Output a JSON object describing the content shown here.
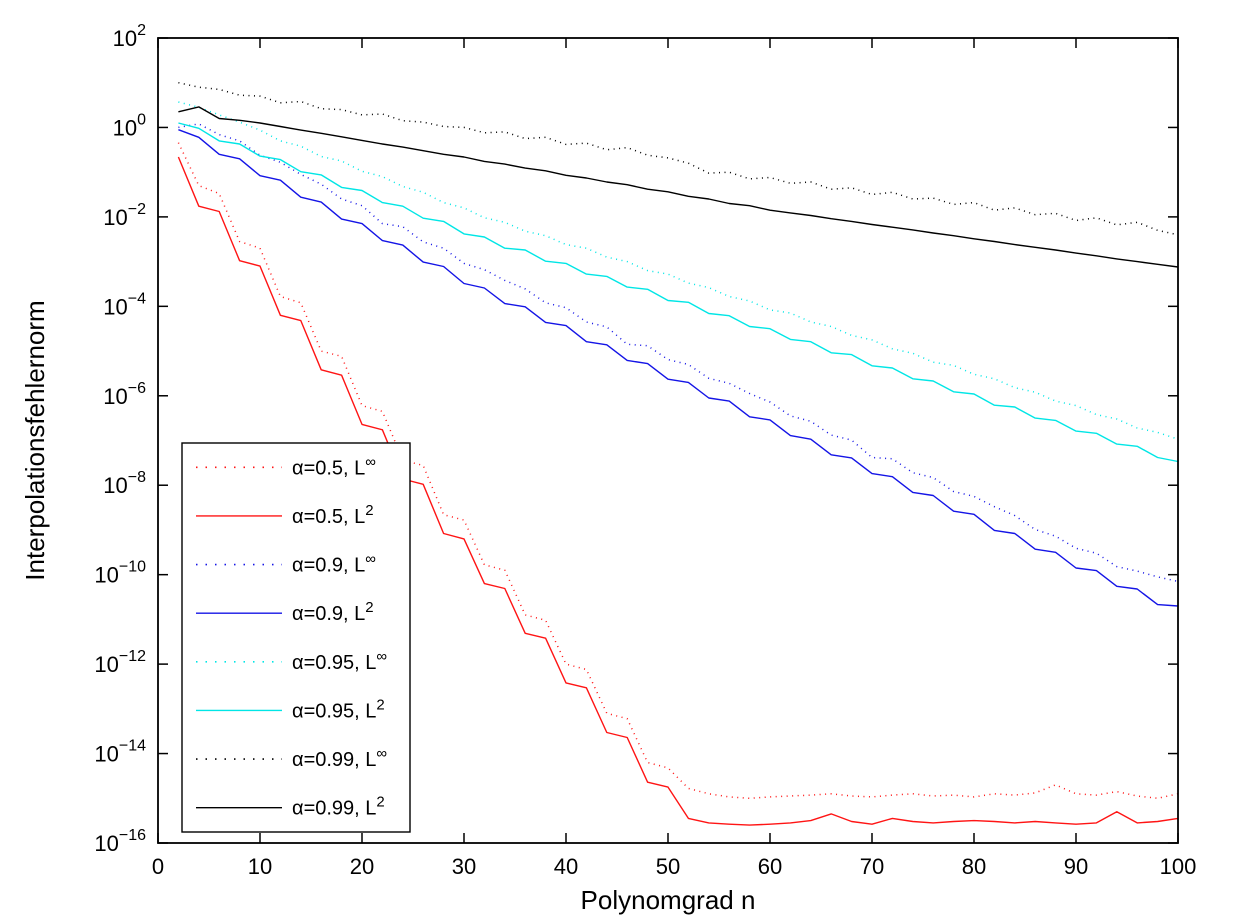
{
  "chart_data": {
    "type": "line",
    "title": "",
    "xlabel": "Polynomgrad n",
    "ylabel": "Interpolationsfehlernorm",
    "x_scale": "linear",
    "y_scale": "log10",
    "xlim": [
      0,
      100
    ],
    "ylim_exponents": [
      -16,
      2
    ],
    "x_ticks": [
      0,
      10,
      20,
      30,
      40,
      50,
      60,
      70,
      80,
      90,
      100
    ],
    "y_tick_exponents": [
      2,
      0,
      -2,
      -4,
      -6,
      -8,
      -10,
      -12,
      -14,
      -16
    ],
    "y_tick_mantissa": "10",
    "grid": false,
    "background_color": "#ffffff",
    "axis_color": "#000000",
    "legend_position": "lower-left-inside",
    "y_value_format": "log10y arrays hold log10 of the plotted error norm",
    "x": [
      2,
      4,
      6,
      8,
      10,
      12,
      14,
      16,
      18,
      20,
      22,
      24,
      26,
      28,
      30,
      32,
      34,
      36,
      38,
      40,
      42,
      44,
      46,
      48,
      50,
      52,
      54,
      56,
      58,
      60,
      62,
      64,
      66,
      68,
      70,
      72,
      74,
      76,
      78,
      80,
      82,
      84,
      86,
      88,
      90,
      92,
      94,
      96,
      98,
      100
    ],
    "series": [
      {
        "id": "a05-linf",
        "label": "α=0.5, L∞",
        "label_base": "α=0.5, L",
        "label_sup": "∞",
        "color": "#ff1414",
        "line_style": "dotted",
        "log10y": [
          -0.34,
          -1.3,
          -1.48,
          -2.55,
          -2.7,
          -3.78,
          -3.92,
          -5.0,
          -5.12,
          -6.22,
          -6.35,
          -7.44,
          -7.56,
          -8.66,
          -8.78,
          -9.78,
          -9.9,
          -10.9,
          -11.02,
          -12.0,
          -12.12,
          -13.1,
          -13.22,
          -14.2,
          -14.32,
          -14.78,
          -14.9,
          -14.97,
          -15.0,
          -14.97,
          -14.95,
          -14.93,
          -14.9,
          -14.95,
          -14.97,
          -14.93,
          -14.9,
          -14.95,
          -14.93,
          -14.97,
          -14.9,
          -14.93,
          -14.88,
          -14.7,
          -14.9,
          -14.93,
          -14.85,
          -14.95,
          -15.0,
          -14.9
        ]
      },
      {
        "id": "a05-l2",
        "label": "α=0.5, L2",
        "label_base": "α=0.5, L",
        "label_sup": "2",
        "color": "#ff1414",
        "line_style": "solid",
        "log10y": [
          -0.66,
          -1.76,
          -1.88,
          -2.98,
          -3.1,
          -4.2,
          -4.32,
          -5.42,
          -5.54,
          -6.64,
          -6.76,
          -7.86,
          -7.98,
          -9.08,
          -9.2,
          -10.2,
          -10.31,
          -11.31,
          -11.42,
          -12.42,
          -12.53,
          -13.53,
          -13.64,
          -14.64,
          -14.75,
          -15.45,
          -15.55,
          -15.58,
          -15.6,
          -15.58,
          -15.55,
          -15.5,
          -15.35,
          -15.52,
          -15.58,
          -15.45,
          -15.52,
          -15.55,
          -15.52,
          -15.5,
          -15.52,
          -15.55,
          -15.52,
          -15.55,
          -15.58,
          -15.55,
          -15.3,
          -15.55,
          -15.52,
          -15.45
        ]
      },
      {
        "id": "a09-linf",
        "label": "α=0.9, L∞",
        "label_base": "α=0.9, L",
        "label_sup": "∞",
        "color": "#1414e6",
        "line_style": "dotted",
        "log10y": [
          0.0,
          0.08,
          -0.16,
          -0.3,
          -0.62,
          -0.78,
          -1.05,
          -1.27,
          -1.6,
          -1.75,
          -2.15,
          -2.22,
          -2.56,
          -2.7,
          -3.04,
          -3.18,
          -3.42,
          -3.61,
          -3.92,
          -4.03,
          -4.35,
          -4.46,
          -4.85,
          -4.88,
          -5.19,
          -5.3,
          -5.61,
          -5.72,
          -5.95,
          -6.14,
          -6.45,
          -6.57,
          -6.88,
          -6.99,
          -7.38,
          -7.41,
          -7.72,
          -7.83,
          -8.14,
          -8.25,
          -8.48,
          -8.68,
          -8.99,
          -9.14,
          -9.41,
          -9.52,
          -9.82,
          -9.92,
          -10.05,
          -10.15
        ]
      },
      {
        "id": "a09-l2",
        "label": "α=0.9, L2",
        "label_base": "α=0.9, L",
        "label_sup": "2",
        "color": "#1414e6",
        "line_style": "solid",
        "log10y": [
          -0.05,
          -0.22,
          -0.6,
          -0.7,
          -1.08,
          -1.18,
          -1.56,
          -1.67,
          -2.05,
          -2.15,
          -2.53,
          -2.63,
          -3.01,
          -3.11,
          -3.49,
          -3.59,
          -3.94,
          -4.01,
          -4.36,
          -4.43,
          -4.79,
          -4.86,
          -5.21,
          -5.28,
          -5.63,
          -5.7,
          -6.05,
          -6.12,
          -6.47,
          -6.54,
          -6.89,
          -6.97,
          -7.32,
          -7.39,
          -7.74,
          -7.81,
          -8.16,
          -8.23,
          -8.58,
          -8.65,
          -9.01,
          -9.08,
          -9.43,
          -9.5,
          -9.85,
          -9.91,
          -10.26,
          -10.32,
          -10.67,
          -10.7
        ]
      },
      {
        "id": "a095-linf",
        "label": "α=0.95, L∞",
        "label_base": "α=0.95, L",
        "label_sup": "∞",
        "color": "#00e6e6",
        "line_style": "dotted",
        "log10y": [
          0.57,
          0.45,
          0.28,
          0.12,
          -0.06,
          -0.3,
          -0.42,
          -0.65,
          -0.75,
          -0.98,
          -1.1,
          -1.32,
          -1.45,
          -1.68,
          -1.8,
          -2.02,
          -2.12,
          -2.32,
          -2.42,
          -2.62,
          -2.7,
          -2.9,
          -3.0,
          -3.2,
          -3.28,
          -3.48,
          -3.58,
          -3.78,
          -3.88,
          -4.08,
          -4.15,
          -4.35,
          -4.45,
          -4.65,
          -4.75,
          -4.95,
          -5.05,
          -5.25,
          -5.32,
          -5.52,
          -5.62,
          -5.82,
          -5.92,
          -6.12,
          -6.22,
          -6.42,
          -6.52,
          -6.72,
          -6.82,
          -6.97
        ]
      },
      {
        "id": "a095-l2",
        "label": "α=0.95, L2",
        "label_base": "α=0.95, L",
        "label_sup": "2",
        "color": "#00e6e6",
        "line_style": "solid",
        "log10y": [
          0.1,
          -0.02,
          -0.3,
          -0.37,
          -0.64,
          -0.72,
          -0.99,
          -1.06,
          -1.34,
          -1.41,
          -1.68,
          -1.76,
          -2.03,
          -2.1,
          -2.38,
          -2.45,
          -2.7,
          -2.74,
          -2.99,
          -3.04,
          -3.28,
          -3.33,
          -3.57,
          -3.62,
          -3.87,
          -3.91,
          -4.16,
          -4.21,
          -4.45,
          -4.5,
          -4.74,
          -4.79,
          -5.04,
          -5.08,
          -5.33,
          -5.38,
          -5.62,
          -5.67,
          -5.91,
          -5.96,
          -6.21,
          -6.25,
          -6.5,
          -6.55,
          -6.79,
          -6.84,
          -7.08,
          -7.13,
          -7.38,
          -7.47
        ]
      },
      {
        "id": "a099-linf",
        "label": "α=0.99, L∞",
        "label_base": "α=0.99, L",
        "label_sup": "∞",
        "color": "#000000",
        "line_style": "dotted",
        "log10y": [
          1.0,
          0.9,
          0.85,
          0.72,
          0.7,
          0.55,
          0.58,
          0.42,
          0.4,
          0.28,
          0.3,
          0.15,
          0.12,
          0.02,
          0.0,
          -0.12,
          -0.1,
          -0.25,
          -0.22,
          -0.38,
          -0.35,
          -0.5,
          -0.45,
          -0.62,
          -0.68,
          -0.8,
          -1.02,
          -1.0,
          -1.15,
          -1.12,
          -1.25,
          -1.22,
          -1.38,
          -1.35,
          -1.5,
          -1.45,
          -1.6,
          -1.58,
          -1.72,
          -1.68,
          -1.85,
          -1.8,
          -1.95,
          -1.92,
          -2.08,
          -2.02,
          -2.18,
          -2.12,
          -2.3,
          -2.4
        ]
      },
      {
        "id": "a099-l2",
        "label": "α=0.99, L2",
        "label_base": "α=0.99, L",
        "label_sup": "2",
        "color": "#000000",
        "line_style": "solid",
        "log10y": [
          0.35,
          0.46,
          0.2,
          0.16,
          0.1,
          0.02,
          -0.06,
          -0.13,
          -0.21,
          -0.29,
          -0.37,
          -0.44,
          -0.52,
          -0.6,
          -0.66,
          -0.76,
          -0.82,
          -0.91,
          -0.97,
          -1.07,
          -1.13,
          -1.22,
          -1.28,
          -1.38,
          -1.44,
          -1.54,
          -1.6,
          -1.7,
          -1.75,
          -1.85,
          -1.91,
          -1.97,
          -2.04,
          -2.1,
          -2.17,
          -2.23,
          -2.29,
          -2.36,
          -2.42,
          -2.49,
          -2.55,
          -2.62,
          -2.68,
          -2.74,
          -2.81,
          -2.87,
          -2.94,
          -3.0,
          -3.06,
          -3.12
        ]
      }
    ]
  }
}
